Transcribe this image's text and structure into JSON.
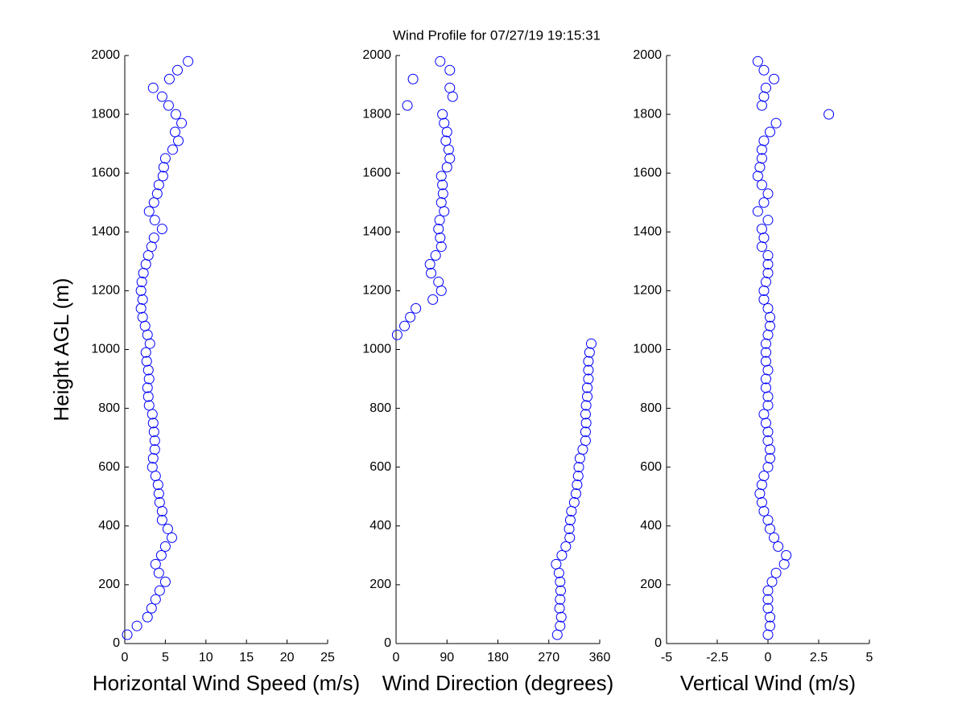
{
  "chart_data": [
    {
      "type": "scatter",
      "ylabel": "Height AGL (m)",
      "xlabel": "Horizontal Wind Speed (m/s)",
      "color": "#0000ff",
      "xlim": [
        0,
        25
      ],
      "xticks": [
        0,
        5,
        10,
        15,
        20,
        25
      ],
      "ylim": [
        0,
        2000
      ],
      "yticks": [
        0,
        200,
        400,
        600,
        800,
        1000,
        1200,
        1400,
        1600,
        1800,
        2000
      ],
      "x": [
        0.3,
        1.5,
        2.8,
        3.3,
        3.8,
        4.3,
        5.0,
        4.2,
        3.8,
        4.5,
        5.0,
        5.8,
        5.3,
        4.6,
        4.6,
        4.3,
        4.2,
        4.1,
        3.8,
        3.4,
        3.5,
        3.7,
        3.7,
        3.6,
        3.5,
        3.4,
        3.0,
        2.9,
        2.8,
        3.0,
        2.9,
        2.7,
        2.6,
        3.1,
        2.8,
        2.5,
        2.2,
        2.0,
        2.2,
        2.0,
        2.1,
        2.3,
        2.6,
        2.9,
        3.3,
        3.6,
        4.6,
        3.7,
        3.0,
        3.6,
        4.0,
        4.2,
        4.7,
        4.8,
        5.0,
        5.9,
        6.6,
        6.2,
        7.0,
        6.3,
        5.4,
        4.6,
        3.5,
        5.5,
        6.5,
        7.8
      ],
      "values": [
        30,
        60,
        90,
        120,
        150,
        180,
        210,
        240,
        270,
        300,
        330,
        360,
        390,
        420,
        450,
        480,
        510,
        540,
        570,
        600,
        630,
        660,
        690,
        720,
        750,
        780,
        810,
        840,
        870,
        900,
        930,
        960,
        990,
        1020,
        1050,
        1080,
        1110,
        1140,
        1170,
        1200,
        1230,
        1260,
        1290,
        1320,
        1350,
        1380,
        1410,
        1440,
        1470,
        1500,
        1530,
        1560,
        1590,
        1620,
        1650,
        1680,
        1710,
        1740,
        1770,
        1800,
        1830,
        1860,
        1890,
        1920,
        1950,
        1980
      ]
    },
    {
      "type": "scatter",
      "title": "Wind Profile for  07/27/19 19:15:31",
      "xlabel": "Wind Direction (degrees)",
      "color": "#0000ff",
      "xlim": [
        0,
        360
      ],
      "xticks": [
        0,
        90,
        180,
        270,
        360
      ],
      "ylim": [
        0,
        2000
      ],
      "yticks": [
        0,
        200,
        400,
        600,
        800,
        1000,
        1200,
        1400,
        1600,
        1800,
        2000
      ],
      "x": [
        285,
        290,
        292,
        289,
        290,
        291,
        290,
        288,
        283,
        293,
        300,
        307,
        306,
        308,
        310,
        315,
        318,
        320,
        322,
        323,
        325,
        330,
        335,
        335,
        336,
        335,
        336,
        338,
        338,
        340,
        340,
        340,
        342,
        345,
        2,
        15,
        25,
        35,
        65,
        80,
        75,
        62,
        60,
        70,
        80,
        78,
        75,
        77,
        85,
        80,
        83,
        82,
        80,
        90,
        95,
        93,
        88,
        90,
        85,
        82,
        20,
        100,
        95,
        30,
        95,
        78
      ],
      "values": [
        30,
        60,
        90,
        120,
        150,
        180,
        210,
        240,
        270,
        300,
        330,
        360,
        390,
        420,
        450,
        480,
        510,
        540,
        570,
        600,
        630,
        660,
        690,
        720,
        750,
        780,
        810,
        840,
        870,
        900,
        930,
        960,
        990,
        1020,
        1050,
        1080,
        1110,
        1140,
        1170,
        1200,
        1230,
        1260,
        1290,
        1320,
        1350,
        1380,
        1410,
        1440,
        1470,
        1500,
        1530,
        1560,
        1590,
        1620,
        1650,
        1680,
        1710,
        1740,
        1770,
        1800,
        1830,
        1860,
        1890,
        1920,
        1950,
        1980
      ]
    },
    {
      "type": "scatter",
      "xlabel": "Vertical Wind (m/s)",
      "color": "#0000ff",
      "xlim": [
        -5,
        5
      ],
      "xticks": [
        -5,
        -2.5,
        0,
        2.5,
        5
      ],
      "ylim": [
        0,
        2000
      ],
      "yticks": [
        0,
        200,
        400,
        600,
        800,
        1000,
        1200,
        1400,
        1600,
        1800,
        2000
      ],
      "x": [
        0.0,
        0.1,
        0.1,
        0.0,
        0.0,
        0.0,
        0.2,
        0.4,
        0.8,
        0.9,
        0.5,
        0.3,
        0.1,
        0.0,
        -0.2,
        -0.3,
        -0.4,
        -0.3,
        -0.2,
        0.0,
        0.1,
        0.1,
        0.0,
        0.0,
        -0.1,
        -0.2,
        0.0,
        0.0,
        -0.1,
        -0.1,
        0.0,
        -0.1,
        -0.1,
        -0.1,
        0.0,
        0.1,
        0.1,
        0.0,
        -0.2,
        -0.2,
        -0.1,
        0.0,
        0.0,
        0.0,
        -0.3,
        -0.2,
        -0.3,
        0.0,
        -0.5,
        -0.2,
        0.0,
        -0.3,
        -0.5,
        -0.4,
        -0.3,
        -0.3,
        -0.2,
        0.1,
        0.4,
        3.0,
        -0.3,
        -0.2,
        -0.1,
        0.3,
        -0.2,
        -0.5
      ],
      "values": [
        30,
        60,
        90,
        120,
        150,
        180,
        210,
        240,
        270,
        300,
        330,
        360,
        390,
        420,
        450,
        480,
        510,
        540,
        570,
        600,
        630,
        660,
        690,
        720,
        750,
        780,
        810,
        840,
        870,
        900,
        930,
        960,
        990,
        1020,
        1050,
        1080,
        1110,
        1140,
        1170,
        1200,
        1230,
        1260,
        1290,
        1320,
        1350,
        1380,
        1410,
        1440,
        1470,
        1500,
        1530,
        1560,
        1590,
        1620,
        1650,
        1680,
        1710,
        1740,
        1770,
        1800,
        1830,
        1860,
        1890,
        1920,
        1950,
        1980
      ]
    }
  ]
}
